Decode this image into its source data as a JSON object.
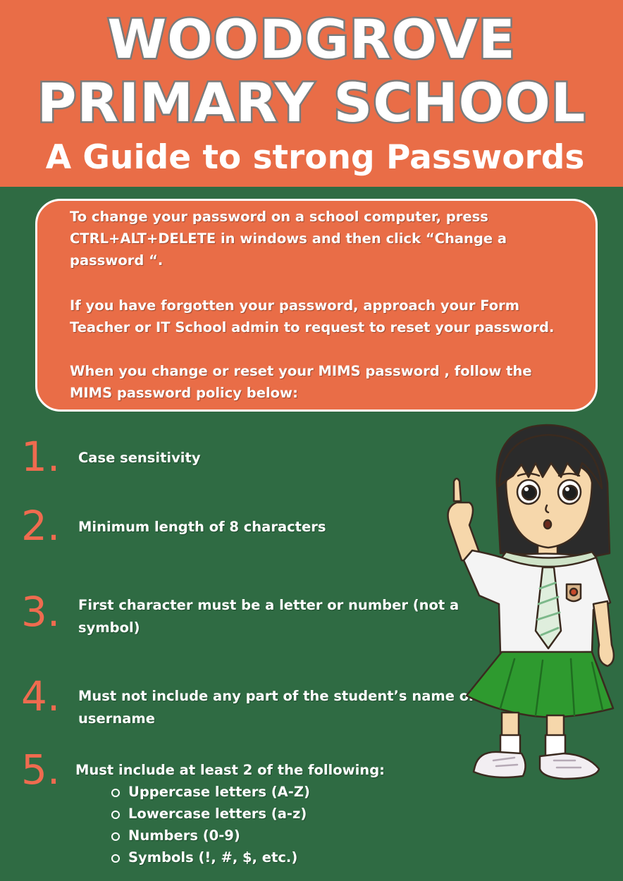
{
  "header": {
    "school_line1": "WOODGROVE",
    "school_line2": "PRIMARY SCHOOL",
    "subtitle": "A Guide to strong Passwords"
  },
  "info": {
    "p1": "To change your password on a school computer, press CTRL+ALT+DELETE in windows and then click “Change a password “.",
    "p2": "If you have forgotten your password, approach your Form Teacher or  IT School admin to request to reset your password.",
    "p3": "When you change or reset your MIMS password , follow the MIMS password policy below:"
  },
  "rules": [
    {
      "num": "1.",
      "text": "Case sensitivity"
    },
    {
      "num": "2.",
      "text": "Minimum length of 8 characters"
    },
    {
      "num": "3.",
      "text": "First character must be a letter or number (not a symbol)"
    },
    {
      "num": "4.",
      "text": "Must not include any part of the student’s name or username"
    },
    {
      "num": "5.",
      "text": "Must include at least 2 of the following:"
    }
  ],
  "sub_items": [
    "Uppercase letters (A-Z)",
    "Lowercase letters (a-z)",
    "Numbers (0-9)",
    "Symbols (!, #, $, etc.)"
  ],
  "colors": {
    "header_bg": "#e96d47",
    "page_bg": "#2f6b43",
    "number_color": "#ef6b4f"
  },
  "illustration": "student-girl-pointing-up"
}
